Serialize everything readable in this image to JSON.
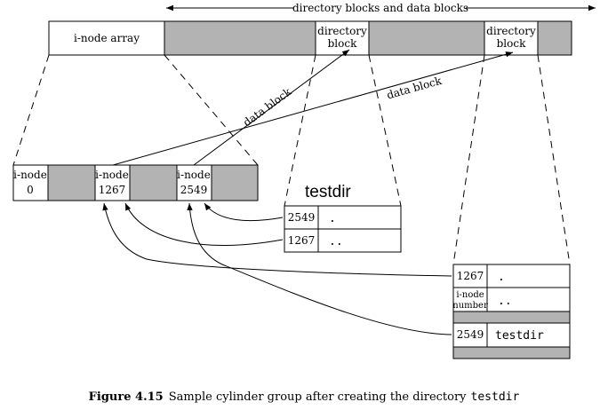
{
  "colors": {
    "shaded": "#b3b3b3",
    "stroke": "#000000"
  },
  "top_bar": {
    "range_label": "directory blocks and data blocks",
    "inode_array": "i-node array",
    "dir_block_1": [
      "directory",
      "block"
    ],
    "dir_block_2": [
      "directory",
      "block"
    ]
  },
  "arrows": {
    "data_block_1": "data block",
    "data_block_2": "data block"
  },
  "inodes": [
    {
      "line1": "i-node",
      "line2": "0"
    },
    {
      "line1": "i-node",
      "line2": "1267"
    },
    {
      "line1": "i-node",
      "line2": "2549"
    }
  ],
  "testdir_block": {
    "title": "testdir",
    "rows": [
      {
        "inode": "2549",
        "name": "."
      },
      {
        "inode": "1267",
        "name": ".."
      }
    ]
  },
  "parent_block": {
    "rows": [
      {
        "inode": "1267",
        "name": "."
      },
      {
        "inode_lines": [
          "i-node",
          "number"
        ],
        "name": ".."
      },
      {
        "inode": "2549",
        "name": "testdir"
      }
    ]
  },
  "caption": {
    "label": "Figure 4.15",
    "text": "Sample cylinder group after creating the directory",
    "code": "testdir"
  }
}
